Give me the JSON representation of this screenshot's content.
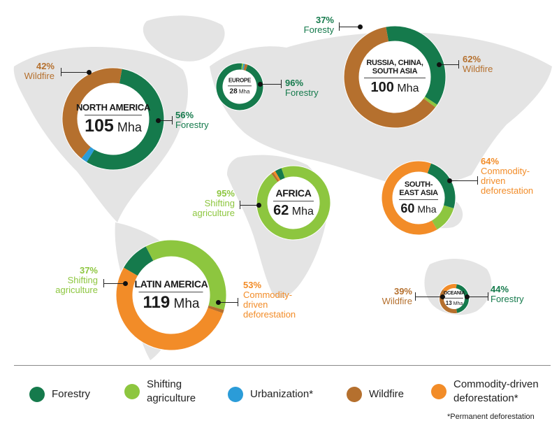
{
  "colors": {
    "forestry": "#157a4c",
    "shifting": "#8dc63f",
    "urbanization": "#2b9cd8",
    "wildfire": "#b5702e",
    "commodity": "#f28c28",
    "map": "#e4e4e4"
  },
  "chart_data": {
    "type": "pie",
    "unit": "Mha",
    "categories": [
      "Forestry",
      "Shifting agriculture",
      "Urbanization*",
      "Wildfire",
      "Commodity-driven deforestation*"
    ],
    "regions": [
      {
        "name": "NORTH AMERICA",
        "total": 105,
        "total_label": "105",
        "values": {
          "forestry": 56,
          "shifting": 0,
          "urbanization": 2,
          "wildfire": 42,
          "commodity": 0
        }
      },
      {
        "name": "EUROPE",
        "total": 28,
        "total_label": "28",
        "values": {
          "forestry": 96,
          "shifting": 1,
          "urbanization": 1,
          "wildfire": 2,
          "commodity": 0
        }
      },
      {
        "name": "RUSSIA, CHINA, SOUTH ASIA",
        "total": 100,
        "total_label": "100",
        "values": {
          "forestry": 37,
          "shifting": 1,
          "urbanization": 0,
          "wildfire": 62,
          "commodity": 0
        }
      },
      {
        "name": "AFRICA",
        "total": 62,
        "total_label": "62",
        "values": {
          "forestry": 3,
          "shifting": 95,
          "urbanization": 0,
          "wildfire": 1,
          "commodity": 1
        }
      },
      {
        "name": "SOUTH-EAST ASIA",
        "total": 60,
        "total_label": "60",
        "values": {
          "forestry": 24,
          "shifting": 12,
          "urbanization": 0,
          "wildfire": 0,
          "commodity": 64
        }
      },
      {
        "name": "LATIN AMERICA",
        "total": 119,
        "total_label": "119",
        "values": {
          "forestry": 9,
          "shifting": 37,
          "urbanization": 0,
          "wildfire": 1,
          "commodity": 53
        }
      },
      {
        "name": "OCEANIA",
        "total": 13,
        "total_label": "13",
        "values": {
          "forestry": 44,
          "shifting": 0,
          "urbanization": 0,
          "wildfire": 39,
          "commodity": 17
        }
      }
    ]
  },
  "callouts": [
    {
      "pct": "42%",
      "text": "Wildfire",
      "color": "#b5702e"
    },
    {
      "pct": "56%",
      "text": "Forestry",
      "color": "#157a4c"
    },
    {
      "pct": "96%",
      "text": "Forestry",
      "color": "#157a4c"
    },
    {
      "pct": "37%",
      "text": "Foresty",
      "color": "#157a4c"
    },
    {
      "pct": "62%",
      "text": "Wildfire",
      "color": "#b5702e"
    },
    {
      "pct": "95%",
      "text": "Shifting agriculture",
      "color": "#8dc63f"
    },
    {
      "pct": "64%",
      "text": "Commodity-driven deforestation",
      "color": "#f28c28"
    },
    {
      "pct": "37%",
      "text": "Shifting agriculture",
      "color": "#8dc63f"
    },
    {
      "pct": "53%",
      "text": "Commodity-driven deforestation",
      "color": "#f28c28"
    },
    {
      "pct": "39%",
      "text": "Wildfire",
      "color": "#b5702e"
    },
    {
      "pct": "44%",
      "text": "Forestry",
      "color": "#157a4c"
    }
  ],
  "legend": [
    {
      "label": "Forestry",
      "key": "forestry"
    },
    {
      "label": "Shifting agriculture",
      "key": "shifting"
    },
    {
      "label": "Urbanization*",
      "key": "urbanization"
    },
    {
      "label": "Wildfire",
      "key": "wildfire"
    },
    {
      "label": "Commodity-driven deforestation*",
      "key": "commodity"
    }
  ],
  "footnote": "*Permanent deforestation"
}
